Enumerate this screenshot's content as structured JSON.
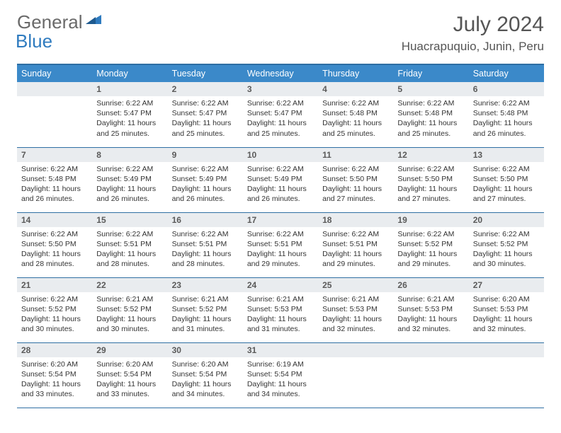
{
  "logo": {
    "gray": "General",
    "blue": "Blue"
  },
  "title": "July 2024",
  "location": "Huacrapuquio, Junin, Peru",
  "colors": {
    "header_bg": "#3b89c9",
    "header_border": "#2f6fa3",
    "daynum_bg": "#e9ecef",
    "text": "#333333",
    "logo_gray": "#6a6a6a",
    "logo_blue": "#2f7bbf"
  },
  "weekdays": [
    "Sunday",
    "Monday",
    "Tuesday",
    "Wednesday",
    "Thursday",
    "Friday",
    "Saturday"
  ],
  "weeks": [
    [
      null,
      {
        "n": "1",
        "sr": "6:22 AM",
        "ss": "5:47 PM",
        "dl": "11 hours and 25 minutes."
      },
      {
        "n": "2",
        "sr": "6:22 AM",
        "ss": "5:47 PM",
        "dl": "11 hours and 25 minutes."
      },
      {
        "n": "3",
        "sr": "6:22 AM",
        "ss": "5:47 PM",
        "dl": "11 hours and 25 minutes."
      },
      {
        "n": "4",
        "sr": "6:22 AM",
        "ss": "5:48 PM",
        "dl": "11 hours and 25 minutes."
      },
      {
        "n": "5",
        "sr": "6:22 AM",
        "ss": "5:48 PM",
        "dl": "11 hours and 25 minutes."
      },
      {
        "n": "6",
        "sr": "6:22 AM",
        "ss": "5:48 PM",
        "dl": "11 hours and 26 minutes."
      }
    ],
    [
      {
        "n": "7",
        "sr": "6:22 AM",
        "ss": "5:48 PM",
        "dl": "11 hours and 26 minutes."
      },
      {
        "n": "8",
        "sr": "6:22 AM",
        "ss": "5:49 PM",
        "dl": "11 hours and 26 minutes."
      },
      {
        "n": "9",
        "sr": "6:22 AM",
        "ss": "5:49 PM",
        "dl": "11 hours and 26 minutes."
      },
      {
        "n": "10",
        "sr": "6:22 AM",
        "ss": "5:49 PM",
        "dl": "11 hours and 26 minutes."
      },
      {
        "n": "11",
        "sr": "6:22 AM",
        "ss": "5:50 PM",
        "dl": "11 hours and 27 minutes."
      },
      {
        "n": "12",
        "sr": "6:22 AM",
        "ss": "5:50 PM",
        "dl": "11 hours and 27 minutes."
      },
      {
        "n": "13",
        "sr": "6:22 AM",
        "ss": "5:50 PM",
        "dl": "11 hours and 27 minutes."
      }
    ],
    [
      {
        "n": "14",
        "sr": "6:22 AM",
        "ss": "5:50 PM",
        "dl": "11 hours and 28 minutes."
      },
      {
        "n": "15",
        "sr": "6:22 AM",
        "ss": "5:51 PM",
        "dl": "11 hours and 28 minutes."
      },
      {
        "n": "16",
        "sr": "6:22 AM",
        "ss": "5:51 PM",
        "dl": "11 hours and 28 minutes."
      },
      {
        "n": "17",
        "sr": "6:22 AM",
        "ss": "5:51 PM",
        "dl": "11 hours and 29 minutes."
      },
      {
        "n": "18",
        "sr": "6:22 AM",
        "ss": "5:51 PM",
        "dl": "11 hours and 29 minutes."
      },
      {
        "n": "19",
        "sr": "6:22 AM",
        "ss": "5:52 PM",
        "dl": "11 hours and 29 minutes."
      },
      {
        "n": "20",
        "sr": "6:22 AM",
        "ss": "5:52 PM",
        "dl": "11 hours and 30 minutes."
      }
    ],
    [
      {
        "n": "21",
        "sr": "6:22 AM",
        "ss": "5:52 PM",
        "dl": "11 hours and 30 minutes."
      },
      {
        "n": "22",
        "sr": "6:21 AM",
        "ss": "5:52 PM",
        "dl": "11 hours and 30 minutes."
      },
      {
        "n": "23",
        "sr": "6:21 AM",
        "ss": "5:52 PM",
        "dl": "11 hours and 31 minutes."
      },
      {
        "n": "24",
        "sr": "6:21 AM",
        "ss": "5:53 PM",
        "dl": "11 hours and 31 minutes."
      },
      {
        "n": "25",
        "sr": "6:21 AM",
        "ss": "5:53 PM",
        "dl": "11 hours and 32 minutes."
      },
      {
        "n": "26",
        "sr": "6:21 AM",
        "ss": "5:53 PM",
        "dl": "11 hours and 32 minutes."
      },
      {
        "n": "27",
        "sr": "6:20 AM",
        "ss": "5:53 PM",
        "dl": "11 hours and 32 minutes."
      }
    ],
    [
      {
        "n": "28",
        "sr": "6:20 AM",
        "ss": "5:54 PM",
        "dl": "11 hours and 33 minutes."
      },
      {
        "n": "29",
        "sr": "6:20 AM",
        "ss": "5:54 PM",
        "dl": "11 hours and 33 minutes."
      },
      {
        "n": "30",
        "sr": "6:20 AM",
        "ss": "5:54 PM",
        "dl": "11 hours and 34 minutes."
      },
      {
        "n": "31",
        "sr": "6:19 AM",
        "ss": "5:54 PM",
        "dl": "11 hours and 34 minutes."
      },
      null,
      null,
      null
    ]
  ],
  "labels": {
    "sunrise": "Sunrise:",
    "sunset": "Sunset:",
    "daylight": "Daylight:"
  }
}
